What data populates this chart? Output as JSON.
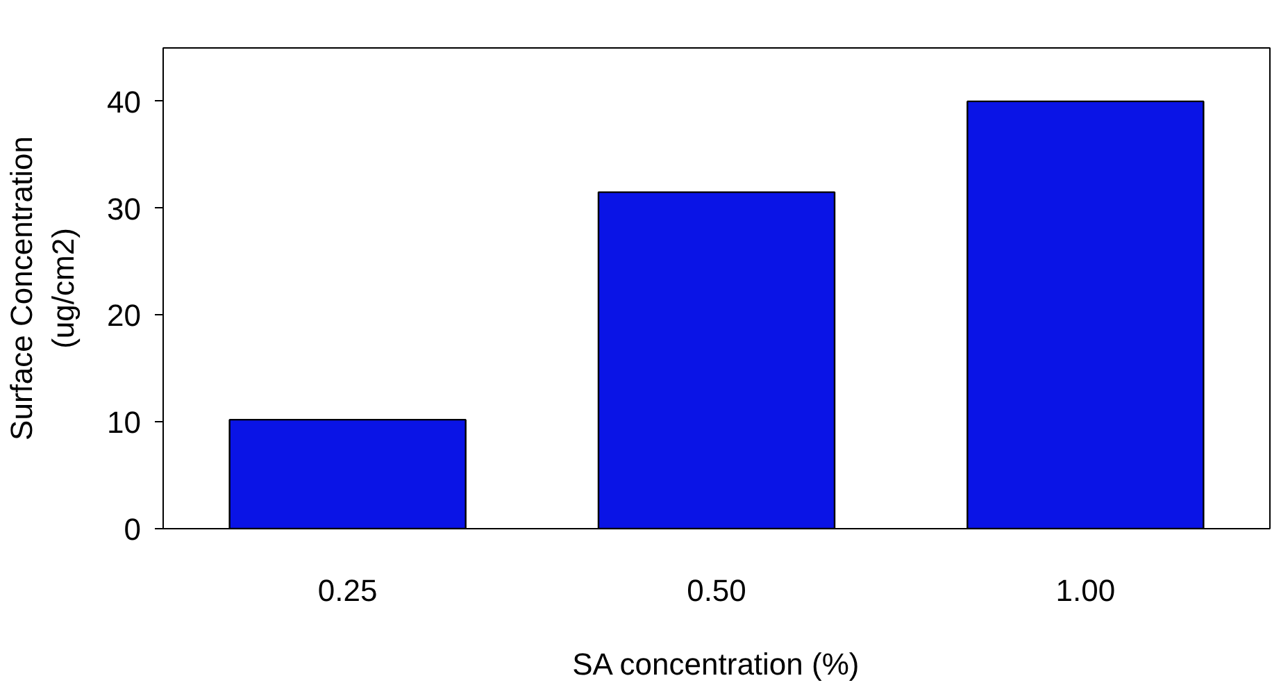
{
  "chart_data": {
    "type": "bar",
    "xlabel": "SA concentration (%)",
    "ylabel": "Surface Concentration\n(ug/cm2)",
    "categories": [
      "0.25",
      "0.50",
      "1.00"
    ],
    "values": [
      10.2,
      31.5,
      40.0
    ],
    "color": "#0a14e6",
    "ylim": [
      0,
      45
    ],
    "yticks": [
      0,
      10,
      20,
      30,
      40
    ],
    "grid": false
  }
}
